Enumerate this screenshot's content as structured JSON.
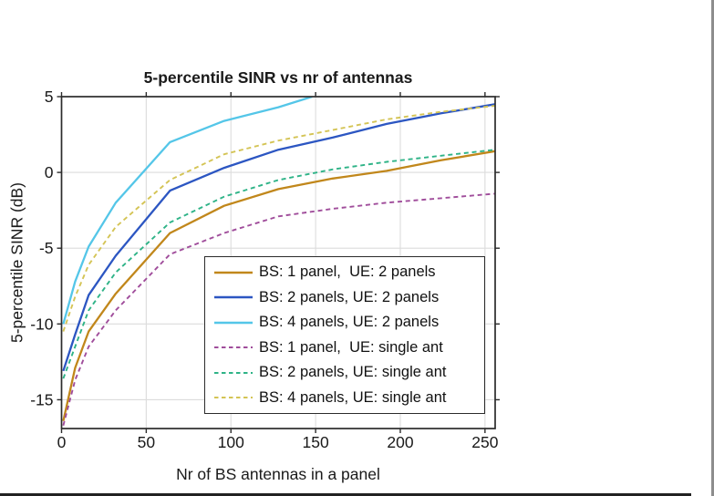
{
  "page": {
    "background": "#ffffff",
    "right_edge_line_color": "#8d8d8d",
    "bottom_edge_line_color": "#222222"
  },
  "chart_data": {
    "type": "line",
    "title": "5-percentile SINR vs nr of antennas",
    "xlabel": "Nr of BS antennas in a panel",
    "ylabel": "5-percentile SINR (dB)",
    "xlim": [
      0,
      256
    ],
    "ylim": [
      -16.9,
      5
    ],
    "xticks": [
      0,
      50,
      100,
      150,
      200,
      250
    ],
    "yticks": [
      5,
      0,
      -5,
      -10,
      -15
    ],
    "grid": true,
    "axis_color": "#2b2b2b",
    "grid_color": "#dcdcdc",
    "text_color": "#1a1a1a",
    "legend_position": "inside-lower-right",
    "series": [
      {
        "name": "BS: 1 panel,  UE: 2 panels",
        "color": "#c1871b",
        "line_style": "solid",
        "x": [
          1,
          8,
          16,
          32,
          64,
          96,
          128,
          160,
          192,
          224,
          256
        ],
        "y": [
          -16.4,
          -12.9,
          -10.5,
          -8.0,
          -4.0,
          -2.2,
          -1.1,
          -0.4,
          0.1,
          0.8,
          1.4
        ]
      },
      {
        "name": "BS: 2 panels, UE: 2 panels",
        "color": "#2c56c2",
        "line_style": "solid",
        "x": [
          1,
          8,
          16,
          32,
          64,
          96,
          128,
          160,
          192,
          224,
          256
        ],
        "y": [
          -13.1,
          -10.7,
          -8.1,
          -5.5,
          -1.2,
          0.3,
          1.5,
          2.3,
          3.2,
          3.9,
          4.5
        ]
      },
      {
        "name": "BS: 4 panels, UE: 2 panels",
        "color": "#54c6e8",
        "line_style": "solid",
        "x": [
          1,
          8,
          16,
          32,
          64,
          96,
          128,
          148
        ],
        "y": [
          -10.0,
          -7.2,
          -4.9,
          -2.0,
          2.0,
          3.4,
          4.3,
          5.0
        ]
      },
      {
        "name": "BS: 1 panel,  UE: single ant",
        "color": "#a04d9b",
        "line_style": "dashed",
        "x": [
          1,
          8,
          16,
          32,
          64,
          96,
          128,
          160,
          192,
          224,
          256
        ],
        "y": [
          -16.7,
          -13.7,
          -11.5,
          -9.1,
          -5.4,
          -4.0,
          -2.9,
          -2.4,
          -2.0,
          -1.7,
          -1.4
        ]
      },
      {
        "name": "BS: 2 panels, UE: single ant",
        "color": "#2eb387",
        "line_style": "dashed",
        "x": [
          1,
          8,
          16,
          32,
          64,
          96,
          128,
          160,
          192,
          224,
          256
        ],
        "y": [
          -13.6,
          -11.5,
          -9.1,
          -6.6,
          -3.3,
          -1.6,
          -0.5,
          0.2,
          0.7,
          1.1,
          1.5
        ]
      },
      {
        "name": "BS: 4 panels, UE: single ant",
        "color": "#d4c455",
        "line_style": "dashed",
        "x": [
          1,
          8,
          16,
          32,
          64,
          96,
          128,
          160,
          192,
          224,
          256
        ],
        "y": [
          -10.5,
          -8.2,
          -6.1,
          -3.6,
          -0.5,
          1.2,
          2.1,
          2.8,
          3.5,
          4.0,
          4.4
        ]
      }
    ]
  }
}
